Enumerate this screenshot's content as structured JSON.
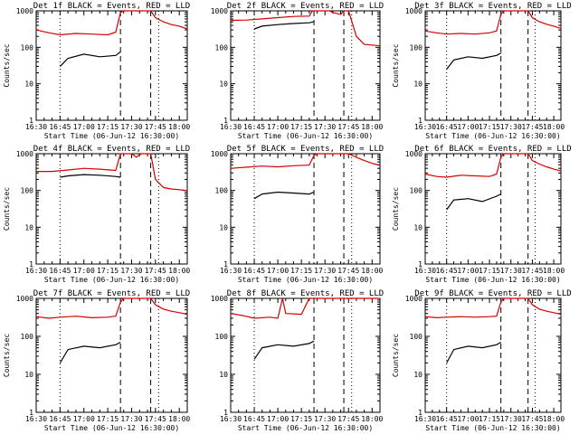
{
  "figure": {
    "colors": {
      "events": "#000000",
      "lld": "#d40000",
      "axis": "#000000",
      "background": "#ffffff"
    }
  },
  "chart_data": [
    {
      "type": "line",
      "title": "Det 1f BLACK = Events, RED = LLD",
      "xlabel": "Start Time (06-Jun-12 16:30:00)",
      "ylabel": "Counts/sec",
      "x_ticks": [
        "16:30",
        "16:45",
        "17:00",
        "17:15",
        "17:30",
        "17:45",
        "18:00"
      ],
      "x_range_minutes": [
        0,
        95
      ],
      "y_scale": "log",
      "ylim": [
        1,
        1000
      ],
      "y_ticks": [
        "1",
        "10",
        "100",
        "1000"
      ],
      "markers": {
        "dotted": [
          15,
          77
        ],
        "dashed": [
          53,
          72
        ]
      },
      "series": [
        {
          "color": "black",
          "x": [
            15,
            20,
            30,
            40,
            50,
            53
          ],
          "y": [
            30,
            50,
            65,
            55,
            60,
            75
          ]
        },
        {
          "color": "red",
          "x": [
            0,
            8,
            15,
            25,
            35,
            45,
            50,
            53,
            55,
            60,
            65,
            72,
            75,
            80,
            85,
            90,
            95
          ],
          "y": [
            300,
            250,
            220,
            240,
            230,
            220,
            260,
            900,
            1000,
            1000,
            1000,
            1000,
            650,
            500,
            420,
            380,
            320
          ]
        }
      ]
    },
    {
      "type": "line",
      "title": "Det 2f BLACK = Events, RED = LLD",
      "xlabel": "Start Time (06-Jun-12 16:30:00)",
      "ylabel": "",
      "x_ticks": [
        "16:30",
        "16:45",
        "17:00",
        "17:15",
        "17:30",
        "17:45",
        "18:00"
      ],
      "x_range_minutes": [
        0,
        95
      ],
      "y_scale": "log",
      "ylim": [
        1,
        1000
      ],
      "y_ticks": [
        "1",
        "10",
        "100",
        "1000"
      ],
      "markers": {
        "dotted": [
          15,
          77
        ],
        "dashed": [
          53,
          72
        ]
      },
      "series": [
        {
          "color": "black",
          "x": [
            15,
            20,
            30,
            40,
            50,
            53
          ],
          "y": [
            320,
            380,
            420,
            450,
            470,
            500
          ]
        },
        {
          "color": "red",
          "x": [
            0,
            10,
            20,
            30,
            40,
            50,
            52,
            55,
            60,
            63,
            65,
            70,
            72,
            75,
            80,
            85,
            95
          ],
          "y": [
            550,
            560,
            600,
            650,
            700,
            720,
            1000,
            1000,
            1000,
            1000,
            900,
            800,
            1000,
            1000,
            200,
            120,
            110
          ]
        }
      ]
    },
    {
      "type": "line",
      "title": "Det 3f BLACK = Events, RED = LLD",
      "xlabel": "Start Time (06-Jun-12 16:30:00)",
      "ylabel": "Counts/sec",
      "x_ticks": [
        "16:30",
        "16:45",
        "17:00",
        "17:15",
        "17:30",
        "17:45",
        "18:00"
      ],
      "x_range_minutes": [
        0,
        95
      ],
      "y_scale": "log",
      "ylim": [
        1,
        1000
      ],
      "y_ticks": [
        "1",
        "10",
        "100",
        "1000"
      ],
      "markers": {
        "dotted": [
          15,
          77
        ],
        "dashed": [
          53,
          72
        ]
      },
      "series": [
        {
          "color": "black",
          "x": [
            15,
            20,
            30,
            40,
            50,
            53
          ],
          "y": [
            25,
            45,
            55,
            50,
            60,
            70
          ]
        },
        {
          "color": "red",
          "x": [
            0,
            8,
            15,
            25,
            35,
            45,
            50,
            53,
            55,
            60,
            65,
            72,
            75,
            80,
            85,
            90,
            95
          ],
          "y": [
            280,
            250,
            230,
            240,
            230,
            250,
            280,
            800,
            1000,
            1000,
            1000,
            1000,
            650,
            500,
            430,
            380,
            330
          ]
        }
      ]
    },
    {
      "type": "line",
      "title": "Det 4f BLACK = Events, RED = LLD",
      "xlabel": "Start Time (06-Jun-12 16:30:00)",
      "ylabel": "Counts/sec",
      "x_ticks": [
        "16:30",
        "16:45",
        "17:00",
        "17:15",
        "17:30",
        "17:45",
        "18:00"
      ],
      "x_range_minutes": [
        0,
        95
      ],
      "y_scale": "log",
      "ylim": [
        1,
        1000
      ],
      "y_ticks": [
        "1",
        "10",
        "100",
        "1000"
      ],
      "markers": {
        "dotted": [
          15,
          77
        ],
        "dashed": [
          53,
          72
        ]
      },
      "series": [
        {
          "color": "black",
          "x": [
            15,
            20,
            30,
            40,
            50,
            53
          ],
          "y": [
            230,
            250,
            270,
            260,
            240,
            230
          ]
        },
        {
          "color": "red",
          "x": [
            0,
            10,
            20,
            30,
            40,
            50,
            53,
            55,
            60,
            63,
            66,
            70,
            72,
            75,
            80,
            85,
            95
          ],
          "y": [
            330,
            330,
            360,
            400,
            380,
            350,
            1000,
            1000,
            1000,
            800,
            1000,
            1000,
            1000,
            200,
            120,
            110,
            100
          ]
        }
      ]
    },
    {
      "type": "line",
      "title": "Det 5f BLACK = Events, RED = LLD",
      "xlabel": "Start Time (06-Jun-12 16:30:00)",
      "ylabel": "",
      "x_ticks": [
        "16:30",
        "16:45",
        "17:00",
        "17:15",
        "17:30",
        "17:45",
        "18:00"
      ],
      "x_range_minutes": [
        0,
        95
      ],
      "y_scale": "log",
      "ylim": [
        1,
        1000
      ],
      "y_ticks": [
        "1",
        "10",
        "100",
        "1000"
      ],
      "markers": {
        "dotted": [
          15,
          77
        ],
        "dashed": [
          53,
          72
        ]
      },
      "series": [
        {
          "color": "black",
          "x": [
            15,
            20,
            30,
            40,
            50,
            53
          ],
          "y": [
            60,
            80,
            90,
            85,
            80,
            90
          ]
        },
        {
          "color": "red",
          "x": [
            0,
            10,
            20,
            30,
            40,
            50,
            53,
            55,
            60,
            65,
            72,
            75,
            80,
            85,
            90,
            95
          ],
          "y": [
            400,
            430,
            460,
            440,
            470,
            490,
            900,
            1000,
            1000,
            1000,
            1000,
            1000,
            800,
            650,
            550,
            480
          ]
        }
      ]
    },
    {
      "type": "line",
      "title": "Det 6f BLACK = Events, RED = LLD",
      "xlabel": "Start Time (06-Jun-12 16:30:00)",
      "ylabel": "Counts/sec",
      "x_ticks": [
        "16:30",
        "16:45",
        "17:00",
        "17:15",
        "17:30",
        "17:45",
        "18:00"
      ],
      "x_range_minutes": [
        0,
        95
      ],
      "y_scale": "log",
      "ylim": [
        1,
        1000
      ],
      "y_ticks": [
        "1",
        "10",
        "100",
        "1000"
      ],
      "markers": {
        "dotted": [
          15,
          77
        ],
        "dashed": [
          53,
          72
        ]
      },
      "series": [
        {
          "color": "black",
          "x": [
            15,
            20,
            30,
            40,
            50,
            53
          ],
          "y": [
            30,
            55,
            60,
            50,
            70,
            80
          ]
        },
        {
          "color": "red",
          "x": [
            0,
            8,
            15,
            25,
            35,
            45,
            50,
            53,
            55,
            60,
            65,
            72,
            75,
            80,
            85,
            90,
            95
          ],
          "y": [
            280,
            240,
            230,
            260,
            250,
            240,
            280,
            800,
            1000,
            1000,
            1000,
            1000,
            650,
            520,
            440,
            380,
            340
          ]
        }
      ]
    },
    {
      "type": "line",
      "title": "Det 7f BLACK = Events, RED = LLD",
      "xlabel": "Start Time (06-Jun-12 16:30:00)",
      "ylabel": "Counts/sec",
      "x_ticks": [
        "16:30",
        "16:45",
        "17:00",
        "17:15",
        "17:30",
        "17:45",
        "18:00"
      ],
      "x_range_minutes": [
        0,
        95
      ],
      "y_scale": "log",
      "ylim": [
        1,
        1000
      ],
      "y_ticks": [
        "1",
        "10",
        "100",
        "1000"
      ],
      "markers": {
        "dotted": [
          15,
          77
        ],
        "dashed": [
          53,
          72
        ]
      },
      "series": [
        {
          "color": "black",
          "x": [
            15,
            20,
            30,
            40,
            50,
            53
          ],
          "y": [
            20,
            45,
            55,
            50,
            60,
            70
          ]
        },
        {
          "color": "red",
          "x": [
            0,
            8,
            15,
            25,
            35,
            45,
            50,
            53,
            55,
            60,
            65,
            72,
            75,
            80,
            85,
            90,
            95
          ],
          "y": [
            330,
            300,
            320,
            340,
            310,
            320,
            340,
            800,
            1000,
            1000,
            1000,
            1000,
            680,
            520,
            460,
            420,
            380
          ]
        }
      ]
    },
    {
      "type": "line",
      "title": "Det 8f BLACK = Events, RED = LLD",
      "xlabel": "Start Time (06-Jun-12 16:30:00)",
      "ylabel": "",
      "x_ticks": [
        "16:30",
        "16:45",
        "17:00",
        "17:15",
        "17:30",
        "17:45",
        "18:00"
      ],
      "x_range_minutes": [
        0,
        95
      ],
      "y_scale": "log",
      "ylim": [
        1,
        1000
      ],
      "y_ticks": [
        "1",
        "10",
        "100",
        "1000"
      ],
      "markers": {
        "dotted": [
          15,
          77
        ],
        "dashed": [
          53,
          72
        ]
      },
      "series": [
        {
          "color": "black",
          "x": [
            15,
            20,
            30,
            40,
            50,
            53
          ],
          "y": [
            25,
            50,
            60,
            55,
            65,
            75
          ]
        },
        {
          "color": "red",
          "x": [
            0,
            8,
            15,
            25,
            30,
            33,
            35,
            45,
            50,
            53,
            55,
            60,
            65,
            72,
            75,
            80,
            85,
            90,
            95
          ],
          "y": [
            400,
            350,
            300,
            320,
            300,
            1000,
            400,
            380,
            1000,
            1000,
            1000,
            1000,
            1000,
            1000,
            1000,
            1000,
            1000,
            1000,
            1000
          ]
        }
      ]
    },
    {
      "type": "line",
      "title": "Det 9f BLACK = Events, RED = LLD",
      "xlabel": "Start Time (06-Jun-12 16:30:00)",
      "ylabel": "Counts/sec",
      "x_ticks": [
        "16:30",
        "16:45",
        "17:00",
        "17:15",
        "17:30",
        "17:45",
        "18:00"
      ],
      "x_range_minutes": [
        0,
        95
      ],
      "y_scale": "log",
      "ylim": [
        1,
        1000
      ],
      "y_ticks": [
        "1",
        "10",
        "100",
        "1000"
      ],
      "markers": {
        "dotted": [
          15,
          77
        ],
        "dashed": [
          53,
          72
        ]
      },
      "series": [
        {
          "color": "black",
          "x": [
            15,
            20,
            30,
            40,
            50,
            53
          ],
          "y": [
            20,
            45,
            55,
            50,
            60,
            70
          ]
        },
        {
          "color": "red",
          "x": [
            0,
            8,
            15,
            25,
            35,
            45,
            50,
            53,
            55,
            60,
            65,
            72,
            75,
            80,
            85,
            90,
            95
          ],
          "y": [
            330,
            310,
            320,
            330,
            320,
            330,
            340,
            800,
            1000,
            1000,
            1000,
            1000,
            680,
            520,
            460,
            420,
            380
          ]
        }
      ]
    }
  ]
}
